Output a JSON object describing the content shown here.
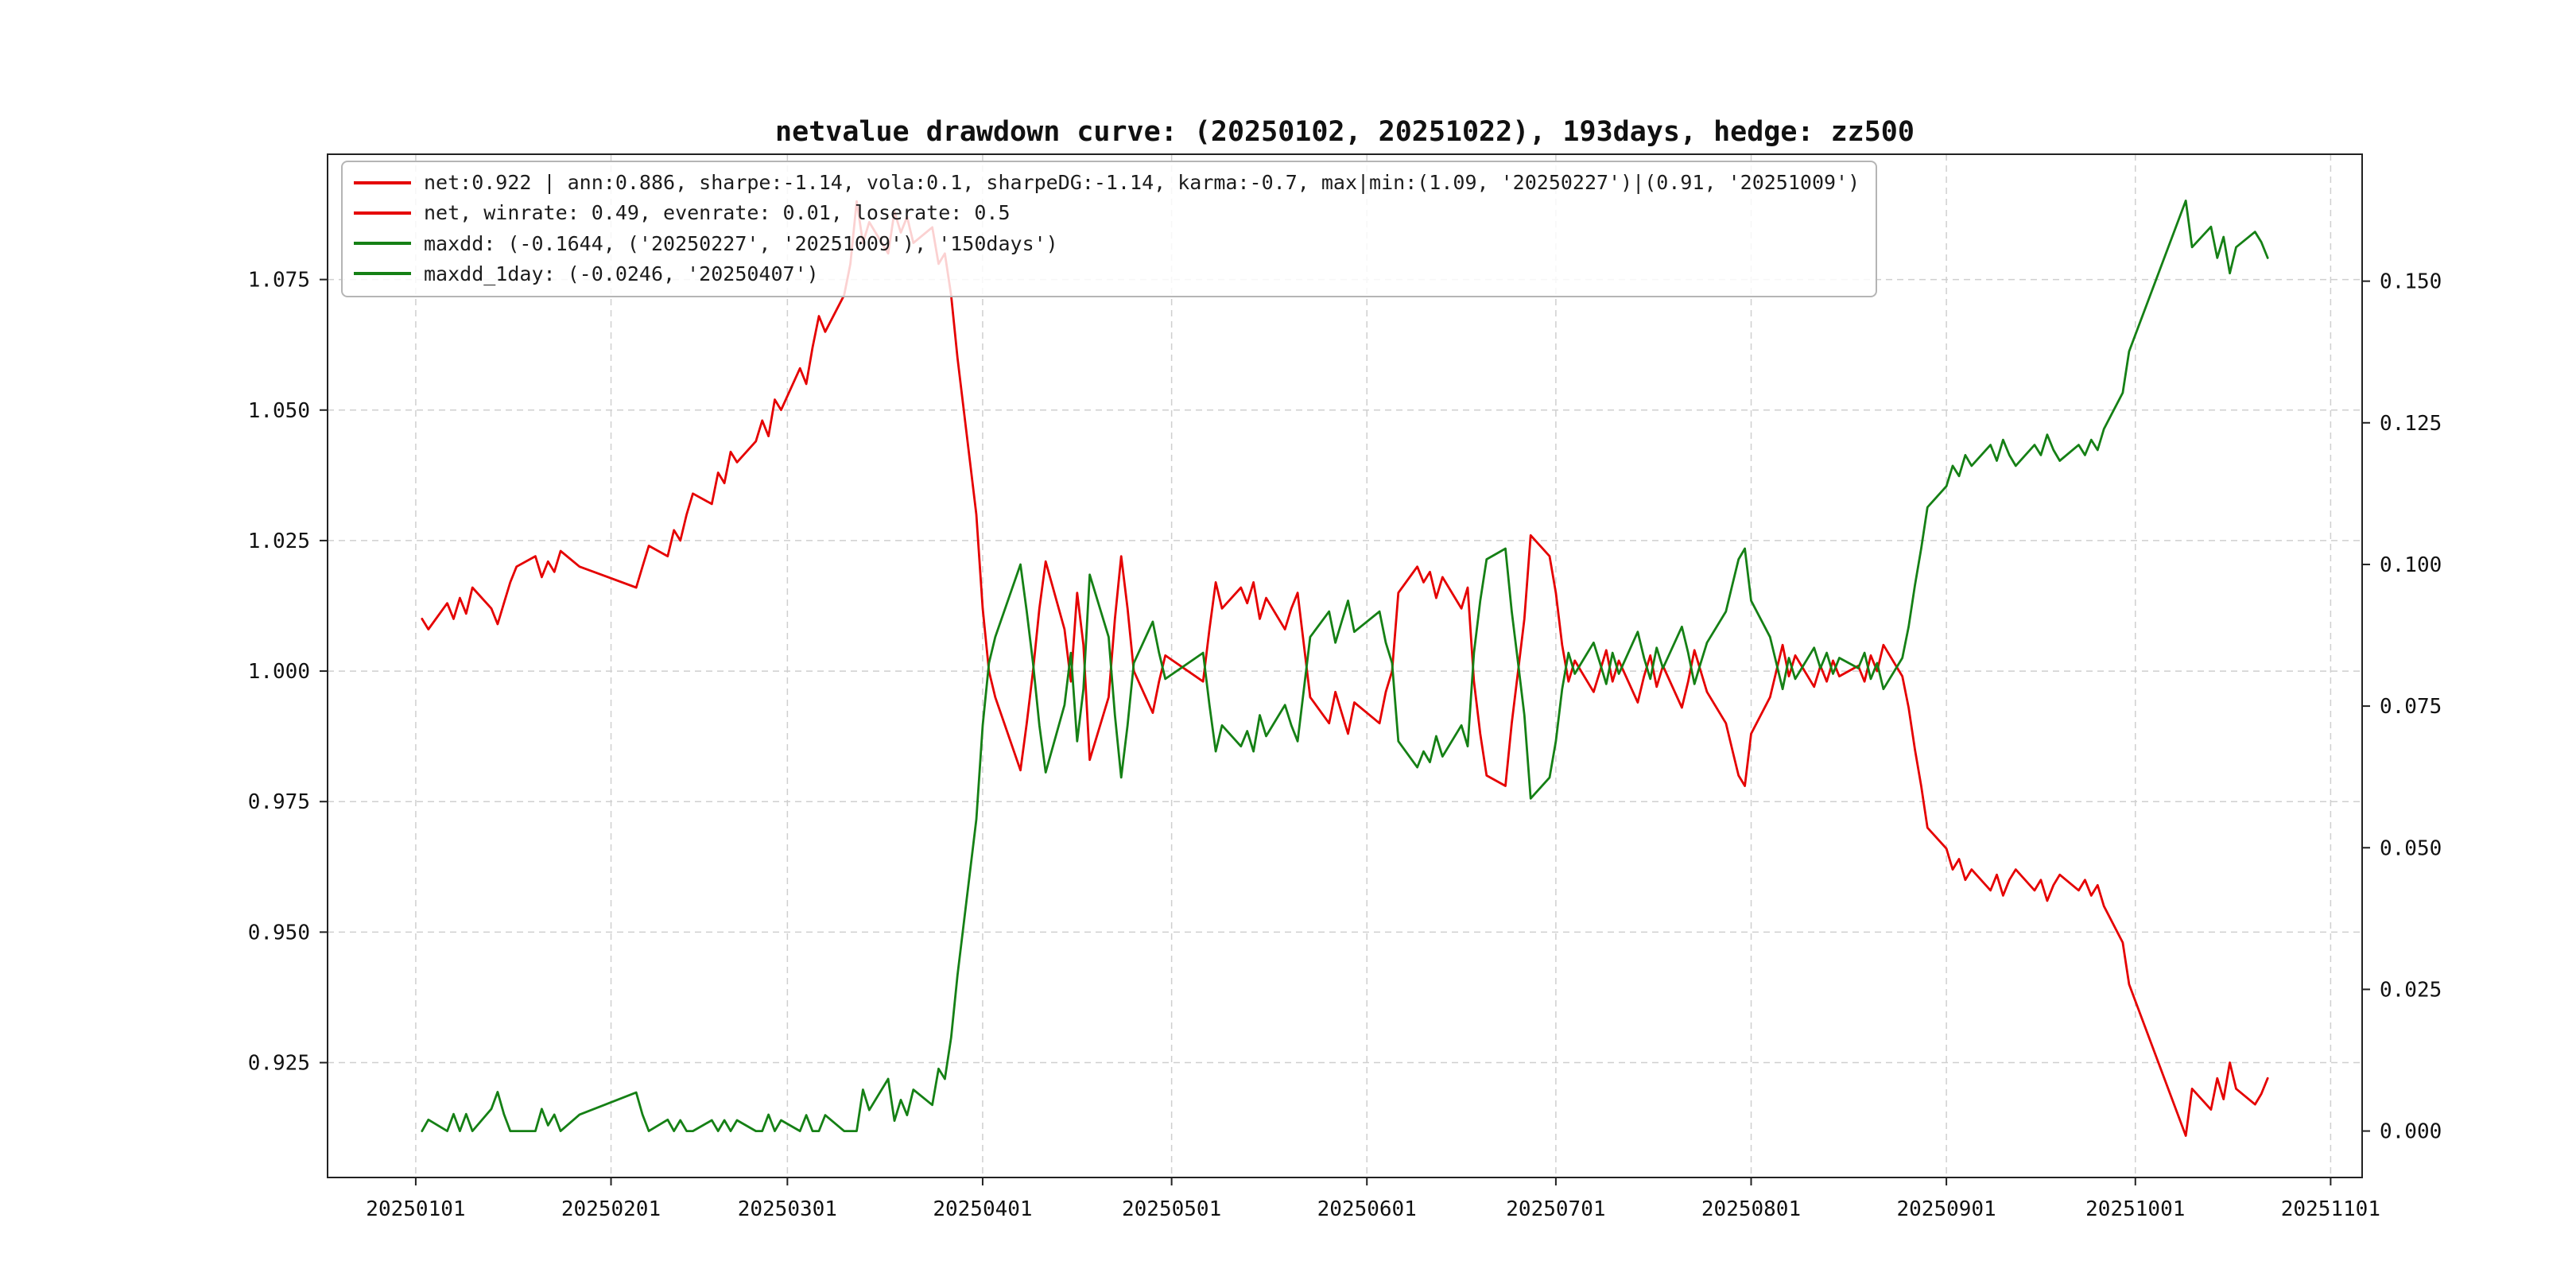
{
  "page": {
    "background": "#ffffff"
  },
  "chart_data": {
    "type": "line",
    "title": "netvalue drawdown curve: (20250102, 20251022), 193days, hedge: zz500",
    "grid": true,
    "legend_position": "upper-left",
    "x_lim": [
      "20241218",
      "20251106"
    ],
    "x_tick_labels": [
      "20250101",
      "20250201",
      "20250301",
      "20250401",
      "20250501",
      "20250601",
      "20250701",
      "20250801",
      "20250901",
      "20251001",
      "20251101"
    ],
    "left_axis": {
      "lim": [
        0.903,
        1.099
      ],
      "ticks": [
        "0.925",
        "0.950",
        "0.975",
        "1.000",
        "1.025",
        "1.050",
        "1.075"
      ]
    },
    "right_axis": {
      "lim": [
        -0.0082,
        0.1724
      ],
      "ticks": [
        "0.000",
        "0.025",
        "0.050",
        "0.075",
        "0.100",
        "0.125",
        "0.150"
      ]
    },
    "style": {
      "grid_color": "#cfcfcf",
      "spine_color": "#222222",
      "net_color": "#e50000",
      "drawdown_color": "#158015"
    },
    "legend": [
      {
        "label": "net:0.922 | ann:0.886, sharpe:-1.14, vola:0.1, sharpeDG:-1.14, karma:-0.7, max|min:(1.09, '20250227')|(0.91, '20251009')",
        "color": "#e50000"
      },
      {
        "label": "net, winrate: 0.49, evenrate: 0.01, loserate: 0.5",
        "color": "#e50000"
      },
      {
        "label": "maxdd: (-0.1644, ('20250227', '20251009'), '150days')",
        "color": "#158015"
      },
      {
        "label": "maxdd_1day: (-0.0246, '20250407')",
        "color": "#158015"
      }
    ],
    "dates": [
      "20250102",
      "20250103",
      "20250106",
      "20250107",
      "20250108",
      "20250109",
      "20250110",
      "20250113",
      "20250114",
      "20250115",
      "20250116",
      "20250117",
      "20250120",
      "20250121",
      "20250122",
      "20250123",
      "20250124",
      "20250127",
      "20250205",
      "20250206",
      "20250207",
      "20250210",
      "20250211",
      "20250212",
      "20250213",
      "20250214",
      "20250217",
      "20250218",
      "20250219",
      "20250220",
      "20250221",
      "20250224",
      "20250225",
      "20250226",
      "20250227",
      "20250228",
      "20250303",
      "20250304",
      "20250305",
      "20250306",
      "20250307",
      "20250310",
      "20250311",
      "20250312",
      "20250313",
      "20250314",
      "20250317",
      "20250318",
      "20250319",
      "20250320",
      "20250321",
      "20250324",
      "20250325",
      "20250326",
      "20250327",
      "20250328",
      "20250331",
      "20250401",
      "20250402",
      "20250403",
      "20250407",
      "20250408",
      "20250409",
      "20250410",
      "20250411",
      "20250414",
      "20250415",
      "20250416",
      "20250417",
      "20250418",
      "20250421",
      "20250422",
      "20250423",
      "20250424",
      "20250425",
      "20250428",
      "20250429",
      "20250430",
      "20250506",
      "20250507",
      "20250508",
      "20250509",
      "20250512",
      "20250513",
      "20250514",
      "20250515",
      "20250516",
      "20250519",
      "20250520",
      "20250521",
      "20250522",
      "20250523",
      "20250526",
      "20250527",
      "20250528",
      "20250529",
      "20250530",
      "20250603",
      "20250604",
      "20250605",
      "20250606",
      "20250609",
      "20250610",
      "20250611",
      "20250612",
      "20250613",
      "20250616",
      "20250617",
      "20250618",
      "20250619",
      "20250620",
      "20250623",
      "20250624",
      "20250625",
      "20250626",
      "20250627",
      "20250630",
      "20250701",
      "20250702",
      "20250703",
      "20250704",
      "20250707",
      "20250708",
      "20250709",
      "20250710",
      "20250711",
      "20250714",
      "20250715",
      "20250716",
      "20250717",
      "20250718",
      "20250721",
      "20250722",
      "20250723",
      "20250724",
      "20250725",
      "20250728",
      "20250729",
      "20250730",
      "20250731",
      "20250801",
      "20250804",
      "20250805",
      "20250806",
      "20250807",
      "20250808",
      "20250811",
      "20250812",
      "20250813",
      "20250814",
      "20250815",
      "20250818",
      "20250819",
      "20250820",
      "20250821",
      "20250822",
      "20250825",
      "20250826",
      "20250827",
      "20250828",
      "20250829",
      "20250901",
      "20250902",
      "20250903",
      "20250904",
      "20250905",
      "20250908",
      "20250909",
      "20250910",
      "20250911",
      "20250912",
      "20250915",
      "20250916",
      "20250917",
      "20250918",
      "20250919",
      "20250922",
      "20250923",
      "20250924",
      "20250925",
      "20250926",
      "20250929",
      "20250930",
      "20251009",
      "20251010",
      "20251013",
      "20251014",
      "20251015",
      "20251016",
      "20251017",
      "20251020",
      "20251021",
      "20251022"
    ],
    "series": [
      {
        "name": "net",
        "axis": "left",
        "color": "#e50000",
        "values": [
          1.01,
          1.008,
          1.013,
          1.01,
          1.014,
          1.011,
          1.016,
          1.012,
          1.009,
          1.013,
          1.017,
          1.02,
          1.022,
          1.018,
          1.021,
          1.019,
          1.023,
          1.02,
          1.016,
          1.02,
          1.024,
          1.022,
          1.027,
          1.025,
          1.03,
          1.034,
          1.032,
          1.038,
          1.036,
          1.042,
          1.04,
          1.044,
          1.048,
          1.045,
          1.052,
          1.05,
          1.058,
          1.055,
          1.062,
          1.068,
          1.065,
          1.072,
          1.078,
          1.09,
          1.082,
          1.086,
          1.08,
          1.088,
          1.084,
          1.087,
          1.082,
          1.085,
          1.078,
          1.08,
          1.072,
          1.06,
          1.03,
          1.012,
          1.0,
          0.995,
          0.981,
          0.99,
          1.0,
          1.012,
          1.021,
          1.008,
          0.998,
          1.015,
          1.005,
          0.983,
          0.995,
          1.01,
          1.022,
          1.012,
          1.0,
          0.992,
          0.998,
          1.003,
          0.998,
          1.008,
          1.017,
          1.012,
          1.016,
          1.013,
          1.017,
          1.01,
          1.014,
          1.008,
          1.012,
          1.015,
          1.005,
          0.995,
          0.99,
          0.996,
          0.992,
          0.988,
          0.994,
          0.99,
          0.996,
          1.0,
          1.015,
          1.02,
          1.017,
          1.019,
          1.014,
          1.018,
          1.012,
          1.016,
          0.998,
          0.988,
          0.98,
          0.978,
          0.99,
          1.0,
          1.01,
          1.026,
          1.022,
          1.015,
          1.005,
          0.998,
          1.002,
          0.996,
          1.0,
          1.004,
          0.998,
          1.002,
          0.994,
          0.999,
          1.003,
          0.997,
          1.001,
          0.993,
          0.998,
          1.004,
          1.0,
          0.996,
          0.99,
          0.985,
          0.98,
          0.978,
          0.988,
          0.995,
          1.0,
          1.005,
          0.999,
          1.003,
          0.997,
          1.001,
          0.998,
          1.002,
          0.999,
          1.001,
          0.998,
          1.003,
          1.0,
          1.005,
          0.999,
          0.993,
          0.985,
          0.978,
          0.97,
          0.966,
          0.962,
          0.964,
          0.96,
          0.962,
          0.958,
          0.961,
          0.957,
          0.96,
          0.962,
          0.958,
          0.96,
          0.956,
          0.959,
          0.961,
          0.958,
          0.96,
          0.957,
          0.959,
          0.955,
          0.948,
          0.94,
          0.911,
          0.92,
          0.916,
          0.922,
          0.918,
          0.925,
          0.92,
          0.917,
          0.919,
          0.922
        ]
      },
      {
        "name": "drawdown",
        "axis": "right",
        "color": "#158015",
        "values": [
          0.0,
          0.002,
          0.0,
          0.003,
          0.0,
          0.003,
          0.0,
          0.0039,
          0.0069,
          0.003,
          0.0,
          0.0,
          0.0,
          0.0039,
          0.001,
          0.0029,
          0.0,
          0.0029,
          0.0068,
          0.0029,
          0.0,
          0.002,
          0.0,
          0.0019,
          0.0,
          0.0,
          0.0019,
          0.0,
          0.0019,
          0.0,
          0.0019,
          0.0,
          0.0,
          0.0029,
          0.0,
          0.0019,
          0.0,
          0.0028,
          0.0,
          0.0,
          0.0028,
          0.0,
          0.0,
          0.0,
          0.0073,
          0.0037,
          0.0092,
          0.0018,
          0.0055,
          0.0028,
          0.0073,
          0.0046,
          0.011,
          0.0092,
          0.0165,
          0.0275,
          0.055,
          0.0716,
          0.0826,
          0.0872,
          0.1,
          0.0917,
          0.0826,
          0.0716,
          0.0633,
          0.0752,
          0.0844,
          0.0688,
          0.078,
          0.0982,
          0.0872,
          0.0734,
          0.0624,
          0.0716,
          0.0826,
          0.0899,
          0.0844,
          0.0798,
          0.0844,
          0.0752,
          0.067,
          0.0716,
          0.0679,
          0.0706,
          0.067,
          0.0734,
          0.0697,
          0.0752,
          0.0716,
          0.0688,
          0.078,
          0.0872,
          0.0917,
          0.0862,
          0.0899,
          0.0936,
          0.0881,
          0.0917,
          0.0862,
          0.0826,
          0.0688,
          0.0642,
          0.067,
          0.0651,
          0.0697,
          0.0661,
          0.0716,
          0.0679,
          0.0844,
          0.0936,
          0.1009,
          0.1028,
          0.0917,
          0.0826,
          0.0734,
          0.0587,
          0.0624,
          0.0688,
          0.078,
          0.0844,
          0.0807,
          0.0862,
          0.0826,
          0.0789,
          0.0844,
          0.0807,
          0.0881,
          0.0835,
          0.0798,
          0.0853,
          0.0817,
          0.089,
          0.0844,
          0.0789,
          0.0826,
          0.0862,
          0.0917,
          0.0963,
          0.1009,
          0.1028,
          0.0936,
          0.0872,
          0.0826,
          0.078,
          0.0835,
          0.0798,
          0.0853,
          0.0817,
          0.0844,
          0.0807,
          0.0835,
          0.0817,
          0.0844,
          0.0798,
          0.0826,
          0.078,
          0.0835,
          0.089,
          0.0963,
          0.1028,
          0.1101,
          0.1138,
          0.1174,
          0.1156,
          0.1193,
          0.1174,
          0.1211,
          0.1183,
          0.122,
          0.1193,
          0.1174,
          0.1211,
          0.1193,
          0.1229,
          0.1202,
          0.1183,
          0.1211,
          0.1193,
          0.122,
          0.1202,
          0.1239,
          0.1303,
          0.1376,
          0.1642,
          0.156,
          0.1596,
          0.1541,
          0.1578,
          0.1514,
          0.156,
          0.1587,
          0.1569,
          0.1541
        ]
      }
    ]
  }
}
